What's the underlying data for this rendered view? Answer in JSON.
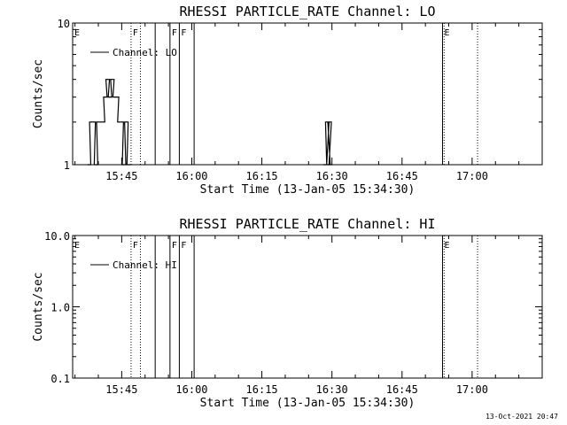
{
  "chart_data": [
    {
      "type": "line",
      "title": "RHESSI PARTICLE_RATE Channel: LO",
      "xlabel": "Start Time (13-Jan-05 15:34:30)",
      "ylabel": "Counts/sec",
      "y_scale": "log",
      "ylim": [
        1,
        10
      ],
      "y_ticks": [
        "1",
        "10"
      ],
      "xlim": [
        "15:34:30",
        "17:15:00"
      ],
      "x_ticks": [
        "15:45",
        "16:00",
        "16:15",
        "16:30",
        "16:45",
        "17:00"
      ],
      "legend": {
        "placement": "top-left",
        "entries": [
          "Channel: LO"
        ]
      },
      "series": [
        {
          "name": "Channel: LO",
          "x": [
            "15:38:00",
            "15:38:30",
            "15:39:00",
            "15:39:30",
            "15:40:00",
            "15:40:30",
            "15:41:00",
            "15:41:30",
            "15:42:00",
            "15:42:30",
            "15:43:00",
            "15:43:30",
            "15:44:00",
            "15:44:30",
            "15:45:00",
            "15:45:30",
            "15:46:00",
            "15:46:30",
            "16:28:30",
            "16:29:00",
            "16:29:15",
            "16:29:30",
            "16:29:45"
          ],
          "y": [
            1,
            2,
            2,
            1,
            2,
            2,
            2,
            3,
            4,
            3,
            4,
            3,
            3,
            2,
            2,
            1,
            2,
            1,
            1,
            2,
            1,
            2,
            1
          ]
        }
      ],
      "flag_lines": [
        {
          "label": "E",
          "time": "15:34:30",
          "style": "dotted"
        },
        {
          "label": "F",
          "time": "15:47:00",
          "style": "dotted"
        },
        {
          "label": "",
          "time": "15:49:00",
          "style": "dotted"
        },
        {
          "label": "",
          "time": "15:52:10",
          "style": "solid"
        },
        {
          "label": "F",
          "time": "15:55:20",
          "style": "solid"
        },
        {
          "label": "F",
          "time": "15:57:20",
          "style": "solid"
        },
        {
          "label": "",
          "time": "16:00:30",
          "style": "solid"
        },
        {
          "label": "E",
          "time": "16:53:40",
          "style": "solid"
        },
        {
          "label": "",
          "time": "16:54:00",
          "style": "dotted"
        },
        {
          "label": "",
          "time": "17:01:10",
          "style": "dotted"
        }
      ]
    },
    {
      "type": "line",
      "title": "RHESSI PARTICLE_RATE Channel: HI",
      "xlabel": "Start Time (13-Jan-05 15:34:30)",
      "ylabel": "Counts/sec",
      "y_scale": "log",
      "ylim": [
        0.1,
        10.0
      ],
      "y_ticks": [
        "0.1",
        "1.0",
        "10.0"
      ],
      "xlim": [
        "15:34:30",
        "17:15:00"
      ],
      "x_ticks": [
        "15:45",
        "16:00",
        "16:15",
        "16:30",
        "16:45",
        "17:00"
      ],
      "legend": {
        "placement": "top-left",
        "entries": [
          "Channel: HI"
        ]
      },
      "series": [
        {
          "name": "Channel: HI",
          "x": [],
          "y": []
        }
      ],
      "flag_lines": [
        {
          "label": "E",
          "time": "15:34:30",
          "style": "dotted"
        },
        {
          "label": "F",
          "time": "15:47:00",
          "style": "dotted"
        },
        {
          "label": "",
          "time": "15:49:00",
          "style": "dotted"
        },
        {
          "label": "",
          "time": "15:52:10",
          "style": "solid"
        },
        {
          "label": "F",
          "time": "15:55:20",
          "style": "solid"
        },
        {
          "label": "F",
          "time": "15:57:20",
          "style": "solid"
        },
        {
          "label": "",
          "time": "16:00:30",
          "style": "solid"
        },
        {
          "label": "E",
          "time": "16:53:40",
          "style": "solid"
        },
        {
          "label": "",
          "time": "16:54:00",
          "style": "dotted"
        },
        {
          "label": "",
          "time": "17:01:10",
          "style": "dotted"
        }
      ]
    }
  ],
  "timestamp": "13-Oct-2021 20:47"
}
